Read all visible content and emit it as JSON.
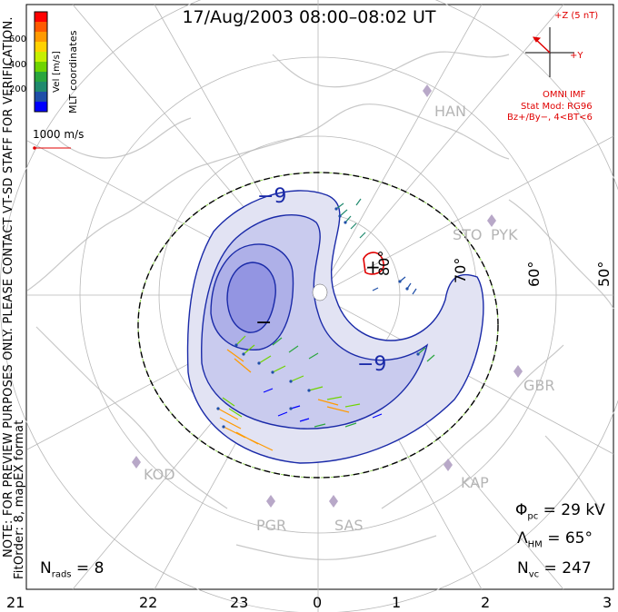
{
  "title": "17/Aug/2003 08:00–08:02 UT",
  "colorbar": {
    "ticks": [
      "600",
      "400",
      "200"
    ],
    "label": "Vel [m/s]",
    "colors": [
      "#ff0000",
      "#ff5a00",
      "#ff9a00",
      "#ffd200",
      "#c6ef00",
      "#6fd400",
      "#2aa63e",
      "#208a6e",
      "#1f4fa8",
      "#0000ff"
    ],
    "coord_label": "MLT coordinates"
  },
  "ref_vector": {
    "label": "1000 m/s"
  },
  "imf": {
    "z_label": "+Z (5 nT)",
    "y_label": "+Y",
    "source": "OMNI IMF",
    "stat_model": "Stat Mod: RG96",
    "conditions": "Bz+/By−, 4<BT<6"
  },
  "side_note": "NOTE: FOR PREVIEW PURPOSES ONLY. PLEASE CONTACT VT-SD STAFF FOR VERIFICATION.",
  "fit_order": "FitOrder: 8, mapEX format",
  "contours": {
    "neg": "−9",
    "neg2": "−9",
    "min": "−",
    "plus": "+"
  },
  "stations": [
    "HAN",
    "PYK",
    "STO",
    "GBR",
    "KAP",
    "SAS",
    "PGR",
    "KOD"
  ],
  "lat_labels": [
    "80°",
    "70°",
    "60°",
    "50°"
  ],
  "stats": {
    "phi": "Φ",
    "phi_sub": "pc",
    "phi_val": "= 29 kV",
    "lambda": "Λ",
    "lambda_sub": "HM",
    "lambda_val": "= 65°",
    "nvc": "N",
    "nvc_sub": "vc",
    "nvc_val": "= 247",
    "nrads": "N",
    "nrads_sub": "rads",
    "nrads_val": "= 8"
  },
  "hours": [
    "21",
    "22",
    "23",
    "0",
    "1",
    "2",
    "3"
  ]
}
